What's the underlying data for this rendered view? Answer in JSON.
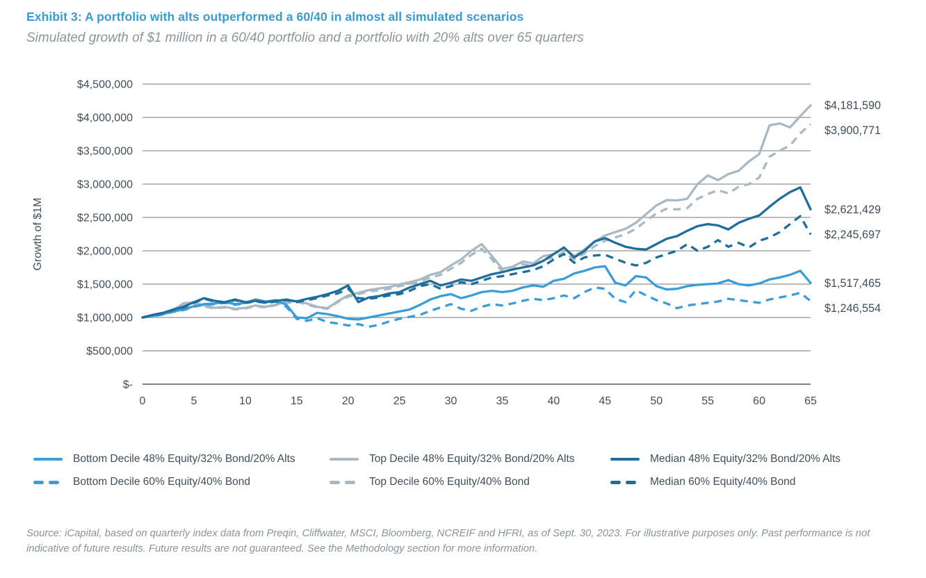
{
  "header": {
    "title": "Exhibit 3: A portfolio with alts outperformed a 60/40 in almost all simulated scenarios",
    "subtitle": "Simulated growth of $1 million in a 60/40 portfolio and a portfolio with 20% alts over 65 quarters"
  },
  "y_axis": {
    "title": "Growth of $1M",
    "ticks": [
      "$4,500,000",
      "$4,000,000",
      "$3,500,000",
      "$3,000,000",
      "$2,500,000",
      "$2,000,000",
      "$1,500,000",
      "$1,000,000",
      "$500,000",
      "$-"
    ]
  },
  "x_axis": {
    "ticks": [
      0,
      5,
      10,
      15,
      20,
      25,
      30,
      35,
      40,
      45,
      50,
      55,
      60,
      65
    ]
  },
  "colors": {
    "light_blue": "#3B9DD8",
    "dark_blue": "#1E6D9B",
    "gray": "#A8B9C3",
    "gridline": "#8F9294",
    "axis_line": "#7D8184",
    "title_blue": "#3A9AD2",
    "text": "#3F4D5A"
  },
  "chart_data": {
    "type": "line",
    "title": "Simulated growth of $1 million over 65 quarters",
    "xlabel": "",
    "ylabel": "Growth of $1M",
    "xlim": [
      0,
      65
    ],
    "ylim": [
      0,
      4500000
    ],
    "grid": "horizontal",
    "legend_position": "bottom",
    "x_step_quarters": 1,
    "series": [
      {
        "name": "Top Decile 60% Equity/40% Bond",
        "color": "#A8B9C3",
        "dash": true,
        "end_label": "$3,900,771",
        "end_value": 3900771,
        "values": [
          1000000,
          1030000,
          1055000,
          1100000,
          1200000,
          1210000,
          1165000,
          1135000,
          1150000,
          1120000,
          1135000,
          1170000,
          1150000,
          1185000,
          1215000,
          1235000,
          1195000,
          1150000,
          1130000,
          1230000,
          1310000,
          1350000,
          1390000,
          1410000,
          1430000,
          1470000,
          1500000,
          1540000,
          1600000,
          1640000,
          1730000,
          1820000,
          1940000,
          2030000,
          1870000,
          1690000,
          1720000,
          1800000,
          1770000,
          1870000,
          1900000,
          1980000,
          1870000,
          1960000,
          2070000,
          2150000,
          2200000,
          2250000,
          2330000,
          2450000,
          2560000,
          2630000,
          2620000,
          2640000,
          2780000,
          2850000,
          2910000,
          2860000,
          2960000,
          3000000,
          3100000,
          3410000,
          3500000,
          3580000,
          3760000,
          3900771
        ]
      },
      {
        "name": "Top Decile 48% Equity/32% Bond/20% Alts",
        "color": "#A8B9C3",
        "dash": false,
        "end_label": "$4,181,590",
        "end_value": 4181590,
        "values": [
          1000000,
          1035000,
          1060000,
          1110000,
          1215000,
          1225000,
          1180000,
          1145000,
          1160000,
          1130000,
          1145000,
          1180000,
          1160000,
          1195000,
          1230000,
          1250000,
          1210000,
          1160000,
          1140000,
          1245000,
          1330000,
          1370000,
          1410000,
          1435000,
          1455000,
          1495000,
          1530000,
          1570000,
          1640000,
          1680000,
          1780000,
          1870000,
          2000000,
          2100000,
          1920000,
          1730000,
          1760000,
          1840000,
          1810000,
          1920000,
          1950000,
          2040000,
          1920000,
          2020000,
          2140000,
          2230000,
          2280000,
          2330000,
          2420000,
          2550000,
          2680000,
          2760000,
          2755000,
          2780000,
          3000000,
          3130000,
          3060000,
          3150000,
          3200000,
          3340000,
          3450000,
          3880000,
          3910000,
          3850000,
          4020000,
          4181590
        ]
      },
      {
        "name": "Bottom Decile 60% Equity/40% Bond",
        "color": "#3B9DD8",
        "dash": true,
        "end_label": "$1,246,554",
        "end_value": 1246554,
        "values": [
          1000000,
          1020000,
          1045000,
          1085000,
          1110000,
          1160000,
          1190000,
          1200000,
          1220000,
          1190000,
          1210000,
          1250000,
          1220000,
          1240000,
          1160000,
          980000,
          950000,
          990000,
          930000,
          910000,
          880000,
          900000,
          860000,
          890000,
          940000,
          980000,
          1010000,
          1040000,
          1100000,
          1150000,
          1200000,
          1130000,
          1100000,
          1160000,
          1200000,
          1180000,
          1210000,
          1250000,
          1280000,
          1260000,
          1290000,
          1330000,
          1290000,
          1380000,
          1450000,
          1430000,
          1280000,
          1230000,
          1410000,
          1330000,
          1260000,
          1210000,
          1140000,
          1180000,
          1200000,
          1220000,
          1240000,
          1280000,
          1260000,
          1240000,
          1220000,
          1270000,
          1300000,
          1330000,
          1370000,
          1246554
        ]
      },
      {
        "name": "Bottom Decile 48% Equity/32% Bond/20% Alts",
        "color": "#3B9DD8",
        "dash": false,
        "end_label": "$1,517,465",
        "end_value": 1517465,
        "values": [
          1000000,
          1025000,
          1050000,
          1090000,
          1120000,
          1170000,
          1200000,
          1210000,
          1230000,
          1200000,
          1220000,
          1270000,
          1240000,
          1260000,
          1190000,
          1000000,
          990000,
          1070000,
          1050000,
          1020000,
          980000,
          970000,
          1000000,
          1030000,
          1060000,
          1090000,
          1120000,
          1190000,
          1270000,
          1320000,
          1350000,
          1290000,
          1330000,
          1380000,
          1400000,
          1380000,
          1400000,
          1450000,
          1480000,
          1460000,
          1550000,
          1580000,
          1660000,
          1700000,
          1750000,
          1770000,
          1520000,
          1480000,
          1620000,
          1600000,
          1470000,
          1420000,
          1430000,
          1470000,
          1490000,
          1500000,
          1510000,
          1560000,
          1500000,
          1480000,
          1510000,
          1570000,
          1600000,
          1640000,
          1700000,
          1517465
        ]
      },
      {
        "name": "Median 60% Equity/40% Bond",
        "color": "#1E6D9B",
        "dash": true,
        "end_label": "$2,245,697",
        "end_value": 2245697,
        "values": [
          1000000,
          1035000,
          1065000,
          1115000,
          1150000,
          1220000,
          1280000,
          1240000,
          1220000,
          1260000,
          1220000,
          1240000,
          1220000,
          1240000,
          1260000,
          1230000,
          1260000,
          1290000,
          1330000,
          1360000,
          1430000,
          1290000,
          1280000,
          1300000,
          1330000,
          1350000,
          1400000,
          1470000,
          1500000,
          1430000,
          1470000,
          1530000,
          1500000,
          1550000,
          1600000,
          1620000,
          1650000,
          1680000,
          1710000,
          1770000,
          1870000,
          1950000,
          1820000,
          1900000,
          1930000,
          1940000,
          1880000,
          1820000,
          1780000,
          1820000,
          1900000,
          1950000,
          2000000,
          2100000,
          2000000,
          2060000,
          2160000,
          2060000,
          2120000,
          2050000,
          2150000,
          2200000,
          2280000,
          2400000,
          2520000,
          2245697
        ]
      },
      {
        "name": "Median 48% Equity/32% Bond/20% Alts",
        "color": "#1E6D9B",
        "dash": false,
        "end_label": "$2,621,429",
        "end_value": 2621429,
        "values": [
          1000000,
          1040000,
          1070000,
          1120000,
          1160000,
          1230000,
          1290000,
          1250000,
          1230000,
          1270000,
          1230000,
          1250000,
          1230000,
          1250000,
          1270000,
          1240000,
          1280000,
          1310000,
          1350000,
          1400000,
          1480000,
          1230000,
          1300000,
          1320000,
          1360000,
          1380000,
          1450000,
          1500000,
          1550000,
          1480000,
          1520000,
          1570000,
          1550000,
          1600000,
          1650000,
          1680000,
          1720000,
          1750000,
          1780000,
          1850000,
          1950000,
          2050000,
          1900000,
          2000000,
          2140000,
          2190000,
          2120000,
          2060000,
          2030000,
          2020000,
          2100000,
          2180000,
          2220000,
          2300000,
          2370000,
          2400000,
          2380000,
          2320000,
          2420000,
          2480000,
          2530000,
          2660000,
          2780000,
          2880000,
          2950000,
          2621429
        ]
      }
    ]
  },
  "legend": {
    "items": [
      {
        "label": "Bottom Decile 48% Equity/32% Bond/20% Alts",
        "color": "#3B9DD8",
        "dash": false
      },
      {
        "label": "Top Decile 48% Equity/32% Bond/20% Alts",
        "color": "#A8B9C3",
        "dash": false
      },
      {
        "label": "Median 48% Equity/32% Bond/20% Alts",
        "color": "#1E6D9B",
        "dash": false
      },
      {
        "label": "Bottom Decile 60% Equity/40% Bond",
        "color": "#3B9DD8",
        "dash": true
      },
      {
        "label": "Top Decile 60% Equity/40% Bond",
        "color": "#A8B9C3",
        "dash": true
      },
      {
        "label": "Median 60% Equity/40% Bond",
        "color": "#1E6D9B",
        "dash": true
      }
    ]
  },
  "source": {
    "text": "Source: iCapital, based on quarterly index data from Preqin, Cliffwater, MSCI, Bloomberg, NCREIF and HFRI, as of Sept. 30, 2023. For illustrative purposes only. Past performance is not indicative of future results. Future results are not guaranteed. See the Methodology section for more information."
  }
}
